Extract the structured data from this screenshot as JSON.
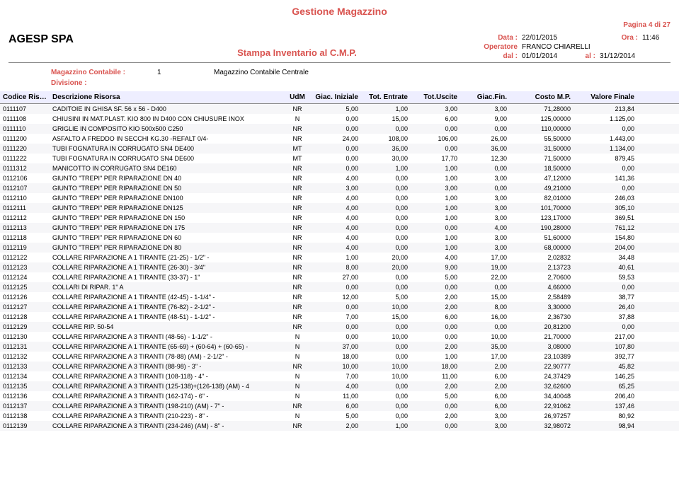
{
  "header": {
    "title": "Gestione Magazzino",
    "company": "AGESP SPA",
    "subtitle": "Stampa Inventario al C.M.P.",
    "page": "Pagina 4 di 27",
    "data_label": "Data :",
    "data_value": "22/01/2015",
    "ora_label": "Ora :",
    "ora_value": "11:46",
    "operatore_label": "Operatore",
    "operatore_value": "FRANCO CHIARELLI",
    "dal_label": "dal :",
    "dal_value": "01/01/2014",
    "al_label": "al :",
    "al_value": "31/12/2014",
    "magazzino_label": "Magazzino Contabile :",
    "magazzino_num": "1",
    "magazzino_desc": "Magazzino Contabile Centrale",
    "divisione_label": "Divisione :"
  },
  "columns": {
    "code": "Codice Risorsa",
    "desc": "Descrizione Risorsa",
    "udm": "UdM",
    "ini": "Giac. Iniziale",
    "ent": "Tot. Entrate",
    "usc": "Tot.Uscite",
    "fin": "Giac.Fin.",
    "cost": "Costo M.P.",
    "val": "Valore Finale"
  },
  "rows": [
    {
      "code": "0111107",
      "desc": "CADITOIE IN GHISA SF. 56 x 56 - D400",
      "udm": "NR",
      "ini": "5,00",
      "ent": "1,00",
      "usc": "3,00",
      "fin": "3,00",
      "cost": "71,28000",
      "val": "213,84"
    },
    {
      "code": "0111108",
      "desc": "CHIUSINI IN MAT.PLAST. KIO 800 IN D400 CON CHIUSURE INOX",
      "udm": "N",
      "ini": "0,00",
      "ent": "15,00",
      "usc": "6,00",
      "fin": "9,00",
      "cost": "125,00000",
      "val": "1.125,00"
    },
    {
      "code": "0111110",
      "desc": "GRIGLIE IN COMPOSITO KIO 500x500 C250",
      "udm": "NR",
      "ini": "0,00",
      "ent": "0,00",
      "usc": "0,00",
      "fin": "0,00",
      "cost": "110,00000",
      "val": "0,00"
    },
    {
      "code": "0111200",
      "desc": "ASFALTO A FREDDO IN SECCHI KG.30 -REFALT 0/4-",
      "udm": "NR",
      "ini": "24,00",
      "ent": "108,00",
      "usc": "106,00",
      "fin": "26,00",
      "cost": "55,50000",
      "val": "1.443,00"
    },
    {
      "code": "0111220",
      "desc": "TUBI FOGNATURA IN CORRUGATO SN4 DE400",
      "udm": "MT",
      "ini": "0,00",
      "ent": "36,00",
      "usc": "0,00",
      "fin": "36,00",
      "cost": "31,50000",
      "val": "1.134,00"
    },
    {
      "code": "0111222",
      "desc": "TUBI FOGNATURA IN CORRUGATO SN4 DE600",
      "udm": "MT",
      "ini": "0,00",
      "ent": "30,00",
      "usc": "17,70",
      "fin": "12,30",
      "cost": "71,50000",
      "val": "879,45"
    },
    {
      "code": "0111312",
      "desc": "MANICOTTO IN CORRUGATO SN4 DE160",
      "udm": "NR",
      "ini": "0,00",
      "ent": "1,00",
      "usc": "1,00",
      "fin": "0,00",
      "cost": "18,50000",
      "val": "0,00"
    },
    {
      "code": "0112106",
      "desc": "GIUNTO \"TREPI\" PER RIPARAZIONE DN 40",
      "udm": "NR",
      "ini": "4,00",
      "ent": "0,00",
      "usc": "1,00",
      "fin": "3,00",
      "cost": "47,12000",
      "val": "141,36"
    },
    {
      "code": "0112107",
      "desc": "GIUNTO \"TREPI\" PER RIPARAZIONE DN 50",
      "udm": "NR",
      "ini": "3,00",
      "ent": "0,00",
      "usc": "3,00",
      "fin": "0,00",
      "cost": "49,21000",
      "val": "0,00"
    },
    {
      "code": "0112110",
      "desc": "GIUNTO \"TREPI\" PER RIPARAZIONE DN100",
      "udm": "NR",
      "ini": "4,00",
      "ent": "0,00",
      "usc": "1,00",
      "fin": "3,00",
      "cost": "82,01000",
      "val": "246,03"
    },
    {
      "code": "0112111",
      "desc": "GIUNTO \"TREPI\" PER RIPARAZIONE DN125",
      "udm": "NR",
      "ini": "4,00",
      "ent": "0,00",
      "usc": "1,00",
      "fin": "3,00",
      "cost": "101,70000",
      "val": "305,10"
    },
    {
      "code": "0112112",
      "desc": "GIUNTO \"TREPI\" PER RIPARAZIONE DN 150",
      "udm": "NR",
      "ini": "4,00",
      "ent": "0,00",
      "usc": "1,00",
      "fin": "3,00",
      "cost": "123,17000",
      "val": "369,51"
    },
    {
      "code": "0112113",
      "desc": "GIUNTO \"TREPI\" PER RIPARAZIONE DN 175",
      "udm": "NR",
      "ini": "4,00",
      "ent": "0,00",
      "usc": "0,00",
      "fin": "4,00",
      "cost": "190,28000",
      "val": "761,12"
    },
    {
      "code": "0112118",
      "desc": "GIUNTO \"TREPI\" PER RIPARAZIONE DN 60",
      "udm": "NR",
      "ini": "4,00",
      "ent": "0,00",
      "usc": "1,00",
      "fin": "3,00",
      "cost": "51,60000",
      "val": "154,80"
    },
    {
      "code": "0112119",
      "desc": "GIUNTO \"TREPI\" PER RIPARAZIONE DN 80",
      "udm": "NR",
      "ini": "4,00",
      "ent": "0,00",
      "usc": "1,00",
      "fin": "3,00",
      "cost": "68,00000",
      "val": "204,00"
    },
    {
      "code": "0112122",
      "desc": "COLLARE RIPARAZIONE A 1 TIRANTE (21-25) - 1/2\" -",
      "udm": "NR",
      "ini": "1,00",
      "ent": "20,00",
      "usc": "4,00",
      "fin": "17,00",
      "cost": "2,02832",
      "val": "34,48"
    },
    {
      "code": "0112123",
      "desc": "COLLARE RIPARAZIONE A 1 TIRANTE (26-30) - 3/4\"",
      "udm": "NR",
      "ini": "8,00",
      "ent": "20,00",
      "usc": "9,00",
      "fin": "19,00",
      "cost": "2,13723",
      "val": "40,61"
    },
    {
      "code": "0112124",
      "desc": "COLLARE RIPARAZIONE A 1 TIRANTE (33-37) - 1\"",
      "udm": "NR",
      "ini": "27,00",
      "ent": "0,00",
      "usc": "5,00",
      "fin": "22,00",
      "cost": "2,70600",
      "val": "59,53"
    },
    {
      "code": "0112125",
      "desc": "COLLARI DI RIPAR.   1\"     A",
      "udm": "NR",
      "ini": "0,00",
      "ent": "0,00",
      "usc": "0,00",
      "fin": "0,00",
      "cost": "4,66000",
      "val": "0,00"
    },
    {
      "code": "0112126",
      "desc": "COLLARE RIPARAZIONE A 1 TIRANTE (42-45) - 1-1/4\" -",
      "udm": "NR",
      "ini": "12,00",
      "ent": "5,00",
      "usc": "2,00",
      "fin": "15,00",
      "cost": "2,58489",
      "val": "38,77"
    },
    {
      "code": "0112127",
      "desc": "COLLARE RIPARAZIONE A 1 TIRANTE (76-82) - 2-1/2\" -",
      "udm": "NR",
      "ini": "0,00",
      "ent": "10,00",
      "usc": "2,00",
      "fin": "8,00",
      "cost": "3,30000",
      "val": "26,40"
    },
    {
      "code": "0112128",
      "desc": "COLLARE RIPARAZIONE A 1 TIRANTE (48-51) - 1-1/2\" -",
      "udm": "NR",
      "ini": "7,00",
      "ent": "15,00",
      "usc": "6,00",
      "fin": "16,00",
      "cost": "2,36730",
      "val": "37,88"
    },
    {
      "code": "0112129",
      "desc": "COLLARE RIP. 50-54",
      "udm": "NR",
      "ini": "0,00",
      "ent": "0,00",
      "usc": "0,00",
      "fin": "0,00",
      "cost": "20,81200",
      "val": "0,00"
    },
    {
      "code": "0112130",
      "desc": "COLLARE RIPARAZIONE A 3 TIRANTI (48-56) - 1-1/2\" -",
      "udm": "N",
      "ini": "0,00",
      "ent": "10,00",
      "usc": "0,00",
      "fin": "10,00",
      "cost": "21,70000",
      "val": "217,00"
    },
    {
      "code": "0112131",
      "desc": "COLLARE RIPARAZIONE A 1 TIRANTE (65-69) + (60-64) + (60-65) -",
      "udm": "N",
      "ini": "37,00",
      "ent": "0,00",
      "usc": "2,00",
      "fin": "35,00",
      "cost": "3,08000",
      "val": "107,80"
    },
    {
      "code": "0112132",
      "desc": "COLLARE RIPARAZIONE A 3 TIRANTI (78-88) (AM) - 2-1/2\" -",
      "udm": "N",
      "ini": "18,00",
      "ent": "0,00",
      "usc": "1,00",
      "fin": "17,00",
      "cost": "23,10389",
      "val": "392,77"
    },
    {
      "code": "0112133",
      "desc": "COLLARE RIPARAZIONE A 3 TIRANTI (88-98) - 3\" -",
      "udm": "NR",
      "ini": "10,00",
      "ent": "10,00",
      "usc": "18,00",
      "fin": "2,00",
      "cost": "22,90777",
      "val": "45,82"
    },
    {
      "code": "0112134",
      "desc": "COLLARE RIPARAZIONE A 3 TIRANTI (108-118) - 4\" -",
      "udm": "N",
      "ini": "7,00",
      "ent": "10,00",
      "usc": "11,00",
      "fin": "6,00",
      "cost": "24,37429",
      "val": "146,25"
    },
    {
      "code": "0112135",
      "desc": "COLLARE RIPARAZIONE A 3 TIRANTI (125-138)+(126-138) (AM) - 4",
      "udm": "N",
      "ini": "4,00",
      "ent": "0,00",
      "usc": "2,00",
      "fin": "2,00",
      "cost": "32,62600",
      "val": "65,25"
    },
    {
      "code": "0112136",
      "desc": "COLLARE RIPARAZIONE A 3 TIRANTI (162-174) - 6\" -",
      "udm": "N",
      "ini": "11,00",
      "ent": "0,00",
      "usc": "5,00",
      "fin": "6,00",
      "cost": "34,40048",
      "val": "206,40"
    },
    {
      "code": "0112137",
      "desc": "COLLARE RIPARAZIONE A 3 TIRANTI (198-210) (AM) - 7\" -",
      "udm": "NR",
      "ini": "6,00",
      "ent": "0,00",
      "usc": "0,00",
      "fin": "6,00",
      "cost": "22,91062",
      "val": "137,46"
    },
    {
      "code": "0112138",
      "desc": "COLLARE RIPARAZIONE A 3 TIRANTI (210-223) - 8\" -",
      "udm": "N",
      "ini": "5,00",
      "ent": "0,00",
      "usc": "2,00",
      "fin": "3,00",
      "cost": "26,97257",
      "val": "80,92"
    },
    {
      "code": "0112139",
      "desc": "COLLARE RIPARAZIONE A 3 TIRANTI (234-246) (AM) - 8\" -",
      "udm": "NR",
      "ini": "2,00",
      "ent": "1,00",
      "usc": "0,00",
      "fin": "3,00",
      "cost": "32,98072",
      "val": "98,94"
    }
  ]
}
